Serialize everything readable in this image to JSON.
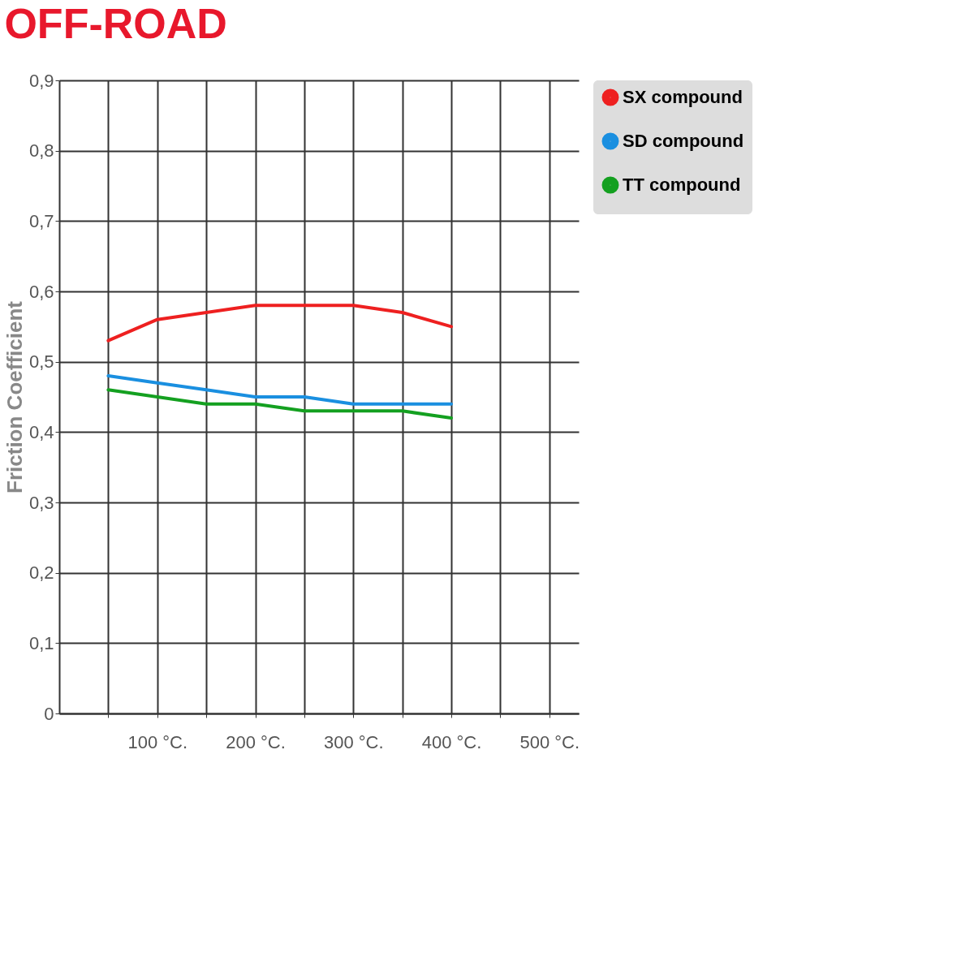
{
  "chart_data": {
    "type": "line",
    "title": "OFF-ROAD",
    "ylabel": "Friction Coefficient",
    "x": [
      50,
      100,
      150,
      200,
      250,
      300,
      350,
      400
    ],
    "series": [
      {
        "name": "SX compound",
        "color": "#ee2020",
        "values": [
          0.53,
          0.56,
          0.57,
          0.58,
          0.58,
          0.58,
          0.57,
          0.55
        ]
      },
      {
        "name": "SD compound",
        "color": "#1a8fe0",
        "values": [
          0.48,
          0.47,
          0.46,
          0.45,
          0.45,
          0.44,
          0.44,
          0.44
        ]
      },
      {
        "name": "TT compound",
        "color": "#14a020",
        "values": [
          0.46,
          0.45,
          0.44,
          0.44,
          0.43,
          0.43,
          0.43,
          0.42
        ]
      }
    ],
    "xlim": [
      0,
      530
    ],
    "xticks": [
      {
        "value": 50,
        "label": null
      },
      {
        "value": 100,
        "label": "100 °C."
      },
      {
        "value": 150,
        "label": null
      },
      {
        "value": 200,
        "label": "200 °C."
      },
      {
        "value": 250,
        "label": null
      },
      {
        "value": 300,
        "label": "300 °C."
      },
      {
        "value": 350,
        "label": null
      },
      {
        "value": 400,
        "label": "400 °C."
      },
      {
        "value": 450,
        "label": null
      },
      {
        "value": 500,
        "label": "500 °C."
      }
    ],
    "ylim": [
      0,
      0.9
    ],
    "yticks": [
      0,
      {
        "value": 0.1,
        "label": "0,1"
      },
      {
        "value": 0.2,
        "label": "0,2"
      },
      {
        "value": 0.3,
        "label": "0,3"
      },
      {
        "value": 0.4,
        "label": "0,4"
      },
      {
        "value": 0.5,
        "label": "0,5"
      },
      {
        "value": 0.6,
        "label": "0,6"
      },
      {
        "value": 0.7,
        "label": "0,7"
      },
      {
        "value": 0.8,
        "label": "0,8"
      },
      {
        "value": 0.9,
        "label": "0,9"
      }
    ],
    "grid": true,
    "legend": "right",
    "marker": "none",
    "line_style": "solid"
  }
}
